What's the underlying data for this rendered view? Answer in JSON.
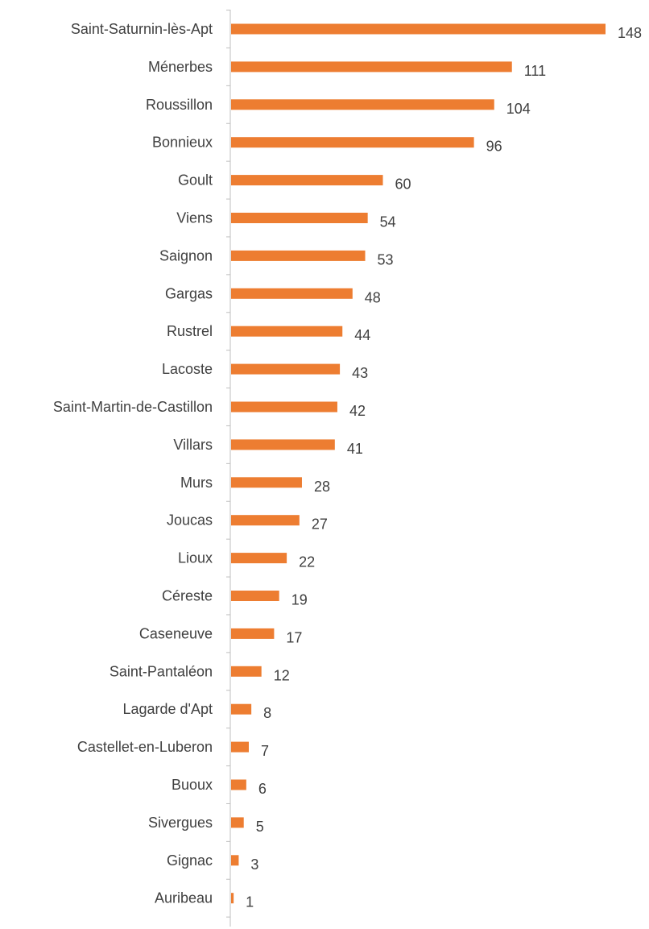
{
  "chart_data": {
    "type": "bar",
    "orientation": "horizontal",
    "title": "",
    "xlabel": "",
    "ylabel": "",
    "categories": [
      "Saint-Saturnin-lès-Apt",
      "Ménerbes",
      "Roussillon",
      "Bonnieux",
      "Goult",
      "Viens",
      "Saignon",
      "Gargas",
      "Rustrel",
      "Lacoste",
      "Saint-Martin-de-Castillon",
      "Villars",
      "Murs",
      "Joucas",
      "Lioux",
      "Céreste",
      "Caseneuve",
      "Saint-Pantaléon",
      "Lagarde d'Apt",
      "Castellet-en-Luberon",
      "Buoux",
      "Sivergues",
      "Gignac",
      "Auribeau"
    ],
    "values": [
      148,
      111,
      104,
      96,
      60,
      54,
      53,
      48,
      44,
      43,
      42,
      41,
      28,
      27,
      22,
      19,
      17,
      12,
      8,
      7,
      6,
      5,
      3,
      1
    ],
    "xlim": [
      0,
      148
    ],
    "data_labels": true,
    "legend": "none",
    "grid": false,
    "colors": {
      "bar": "#ED7D31",
      "axis": "#BFBFBF",
      "text": "#404040"
    }
  }
}
